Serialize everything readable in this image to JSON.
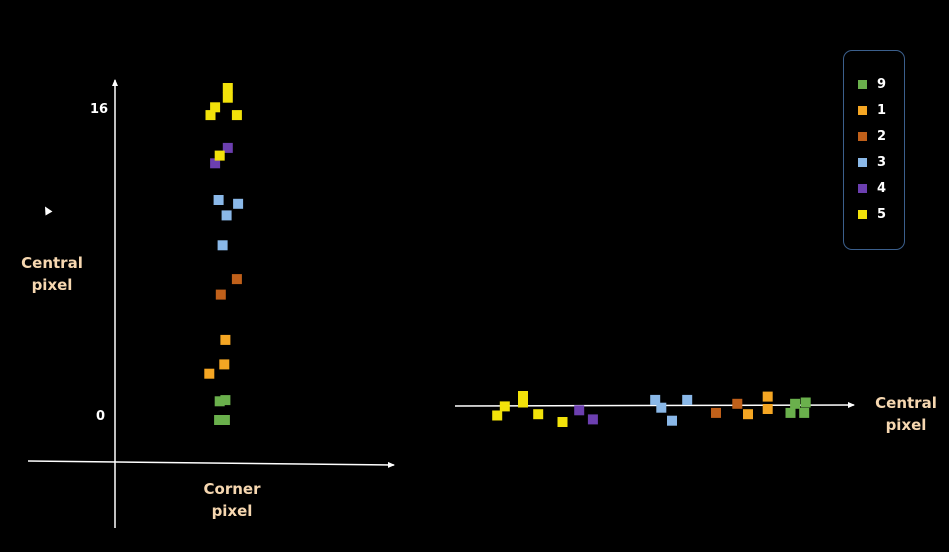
{
  "colors": {
    "9": "#6ab04c",
    "1": "#f5a623",
    "2": "#c0601a",
    "3": "#8ab8e8",
    "4": "#6c3fb0",
    "5": "#f2e20a",
    "axis": "#ffffff",
    "label": "#f6d7b0",
    "legend_border": "#3b5f8c"
  },
  "chart_data": [
    {
      "type": "scatter",
      "xlabel": "Corner pixel",
      "ylabel": "Central pixel",
      "yticks": [
        "16",
        "0"
      ],
      "ylim": [
        -2.3,
        17.7
      ],
      "grid": false,
      "series": [
        {
          "name": "9",
          "x": [
            -0.25,
            0.25,
            -0.2,
            0.3
          ],
          "y": [
            0,
            0,
            0.97,
            1.03
          ]
        },
        {
          "name": "1",
          "x": [
            -1.1,
            0.2,
            0.3
          ],
          "y": [
            2.4,
            2.88,
            4.15
          ]
        },
        {
          "name": "2",
          "x": [
            -0.1,
            1.3
          ],
          "y": [
            6.5,
            7.3
          ]
        },
        {
          "name": "3",
          "x": [
            0.05,
            0.4,
            1.4,
            -0.3
          ],
          "y": [
            9.05,
            10.6,
            11.2,
            11.4
          ]
        },
        {
          "name": "4",
          "x": [
            -0.6,
            0.5
          ],
          "y": [
            13.3,
            14.1
          ]
        },
        {
          "name": "5",
          "x": [
            -0.2,
            -1.0,
            -0.6,
            1.3,
            0.5,
            0.5
          ],
          "y": [
            13.7,
            15.8,
            16.2,
            15.8,
            16.7,
            17.2
          ]
        }
      ]
    },
    {
      "type": "scatter",
      "xlabel": "Central pixel",
      "ylabel": "",
      "yticks": [],
      "grid": false,
      "series": [
        {
          "name": "5",
          "x": [
            0.8,
            1.3,
            2.5,
            2.5,
            3.5,
            5.1
          ],
          "y": [
            -0.5,
            0.2,
            0.5,
            1.0,
            -0.4,
            -1.0
          ]
        },
        {
          "name": "4",
          "x": [
            6.2,
            7.1
          ],
          "y": [
            -0.1,
            -0.8
          ]
        },
        {
          "name": "3",
          "x": [
            11.2,
            11.6,
            12.3,
            13.3
          ],
          "y": [
            0.7,
            0.1,
            -0.9,
            0.7
          ]
        },
        {
          "name": "2",
          "x": [
            15.2,
            16.6
          ],
          "y": [
            -0.3,
            0.4
          ]
        },
        {
          "name": "1",
          "x": [
            17.3,
            18.6,
            18.6
          ],
          "y": [
            -0.4,
            0.0,
            0.95
          ]
        },
        {
          "name": "9",
          "x": [
            20.1,
            20.4,
            21.0,
            21.1
          ],
          "y": [
            -0.3,
            0.4,
            -0.3,
            0.5
          ]
        }
      ]
    }
  ],
  "legend": {
    "items": [
      {
        "label": "9",
        "color_key": "9"
      },
      {
        "label": "1",
        "color_key": "1"
      },
      {
        "label": "2",
        "color_key": "2"
      },
      {
        "label": "3",
        "color_key": "3"
      },
      {
        "label": "4",
        "color_key": "4"
      },
      {
        "label": "5",
        "color_key": "5"
      }
    ]
  }
}
